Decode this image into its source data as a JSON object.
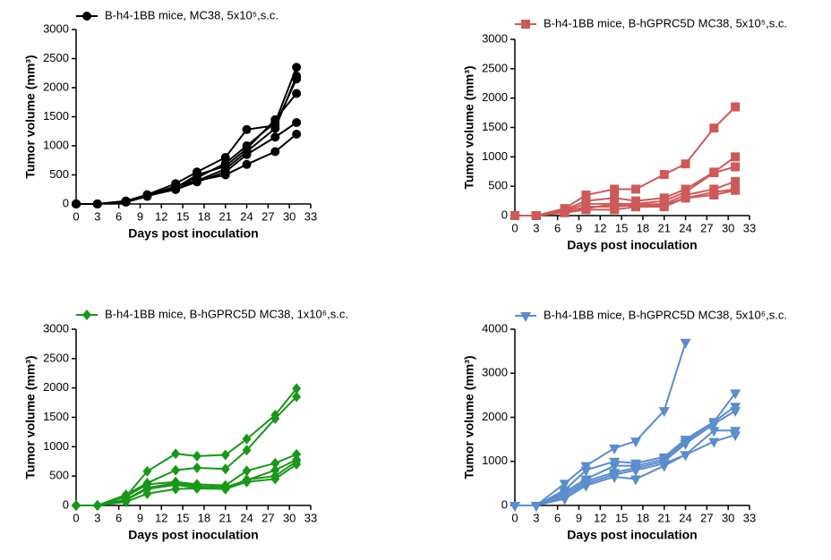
{
  "chart_data": [
    {
      "type": "line",
      "legend": "B-h4-1BB mice, MC38, 5x10⁵,s.c.",
      "color": "#000000",
      "marker": "circle",
      "xlabel": "Days post inoculation",
      "ylabel": "Tumor volume (mm³)",
      "x": [
        0,
        3,
        7,
        10,
        14,
        17,
        21,
        24,
        28,
        31
      ],
      "xlim": [
        0,
        33
      ],
      "xticks": [
        0,
        3,
        6,
        9,
        12,
        15,
        18,
        21,
        24,
        27,
        30,
        33
      ],
      "ylim": [
        0,
        3000
      ],
      "yticks": [
        0,
        500,
        1000,
        1500,
        2000,
        2500,
        3000
      ],
      "series": [
        {
          "values": [
            0,
            0,
            50,
            150,
            300,
            450,
            700,
            1000,
            1400,
            2350
          ]
        },
        {
          "values": [
            0,
            0,
            40,
            140,
            250,
            400,
            600,
            900,
            1300,
            2200
          ]
        },
        {
          "values": [
            0,
            0,
            50,
            160,
            350,
            550,
            800,
            1280,
            1350,
            2150
          ]
        },
        {
          "values": [
            0,
            0,
            30,
            130,
            280,
            500,
            650,
            950,
            1450,
            1900
          ]
        },
        {
          "values": [
            0,
            0,
            40,
            150,
            250,
            380,
            550,
            850,
            1150,
            1400
          ]
        },
        {
          "values": [
            0,
            0,
            40,
            150,
            300,
            400,
            500,
            680,
            900,
            1200
          ]
        }
      ]
    },
    {
      "type": "line",
      "legend": "B-h4-1BB mice, B-hGPRC5D MC38, 5x10⁵,s.c.",
      "color": "#cd5a5a",
      "marker": "square",
      "xlabel": "Days post inoculation",
      "ylabel": "Tumor volume (mm³)",
      "x": [
        0,
        3,
        7,
        10,
        14,
        17,
        21,
        24,
        28,
        31
      ],
      "xlim": [
        0,
        33
      ],
      "xticks": [
        0,
        3,
        6,
        9,
        12,
        15,
        18,
        21,
        24,
        27,
        30,
        33
      ],
      "ylim": [
        0,
        3000
      ],
      "yticks": [
        0,
        500,
        1000,
        1500,
        2000,
        2500,
        3000
      ],
      "series": [
        {
          "values": [
            0,
            0,
            120,
            350,
            450,
            450,
            700,
            880,
            1490,
            1850
          ]
        },
        {
          "values": [
            0,
            0,
            100,
            250,
            300,
            250,
            300,
            450,
            740,
            1000
          ]
        },
        {
          "values": [
            0,
            0,
            80,
            200,
            200,
            200,
            250,
            400,
            730,
            830
          ]
        },
        {
          "values": [
            0,
            0,
            60,
            150,
            150,
            180,
            200,
            350,
            450,
            580
          ]
        },
        {
          "values": [
            0,
            0,
            50,
            120,
            200,
            150,
            150,
            300,
            350,
            430
          ]
        },
        {
          "values": [
            0,
            0,
            50,
            100,
            100,
            150,
            180,
            300,
            400,
            450
          ]
        }
      ]
    },
    {
      "type": "line",
      "legend": "B-h4-1BB mice, B-hGPRC5D MC38, 1x10⁶,s.c.",
      "color": "#1a961a",
      "marker": "diamond",
      "xlabel": "Days post inoculation",
      "ylabel": "Tumor volume (mm³)",
      "x": [
        0,
        3,
        7,
        10,
        14,
        17,
        21,
        24,
        28,
        31
      ],
      "xlim": [
        0,
        33
      ],
      "xticks": [
        0,
        3,
        6,
        9,
        12,
        15,
        18,
        21,
        24,
        27,
        30,
        33
      ],
      "ylim": [
        0,
        3000
      ],
      "yticks": [
        0,
        500,
        1000,
        1500,
        2000,
        2500,
        3000
      ],
      "series": [
        {
          "values": [
            0,
            0,
            150,
            580,
            880,
            840,
            860,
            1130,
            1540,
            1990
          ]
        },
        {
          "values": [
            0,
            0,
            180,
            380,
            600,
            640,
            620,
            940,
            1480,
            1850
          ]
        },
        {
          "values": [
            0,
            0,
            150,
            360,
            400,
            360,
            340,
            590,
            720,
            870
          ]
        },
        {
          "values": [
            0,
            0,
            100,
            300,
            380,
            330,
            310,
            430,
            600,
            780
          ]
        },
        {
          "values": [
            0,
            0,
            90,
            280,
            350,
            300,
            280,
            400,
            450,
            700
          ]
        },
        {
          "values": [
            0,
            0,
            60,
            200,
            280,
            290,
            280,
            440,
            500,
            750
          ]
        }
      ]
    },
    {
      "type": "line",
      "legend": "B-h4-1BB mice, B-hGPRC5D MC38, 5x10⁶,s.c.",
      "color": "#5b8ccc",
      "marker": "triangle-down",
      "xlabel": "Days post inoculation",
      "ylabel": "Tumor volume (mm³)",
      "x": [
        0,
        3,
        7,
        10,
        14,
        17,
        21,
        24,
        28,
        31
      ],
      "xlim": [
        0,
        33
      ],
      "xticks": [
        0,
        3,
        6,
        9,
        12,
        15,
        18,
        21,
        24,
        27,
        30,
        33
      ],
      "ylim": [
        0,
        4000
      ],
      "yticks": [
        0,
        1000,
        2000,
        3000,
        4000
      ],
      "series": [
        {
          "values": [
            0,
            0,
            500,
            900,
            1300,
            1460,
            2150,
            3700,
            null,
            null
          ]
        },
        {
          "values": [
            0,
            0,
            350,
            800,
            1000,
            960,
            1100,
            1500,
            1900,
            2550
          ]
        },
        {
          "values": [
            0,
            0,
            300,
            600,
            900,
            900,
            1050,
            1450,
            1900,
            2250
          ]
        },
        {
          "values": [
            0,
            0,
            250,
            550,
            750,
            850,
            1000,
            1400,
            1850,
            2150
          ]
        },
        {
          "values": [
            0,
            0,
            200,
            500,
            700,
            800,
            950,
            1150,
            1700,
            1700
          ]
        },
        {
          "values": [
            0,
            0,
            150,
            450,
            650,
            600,
            900,
            1150,
            1450,
            1600
          ]
        }
      ]
    }
  ]
}
